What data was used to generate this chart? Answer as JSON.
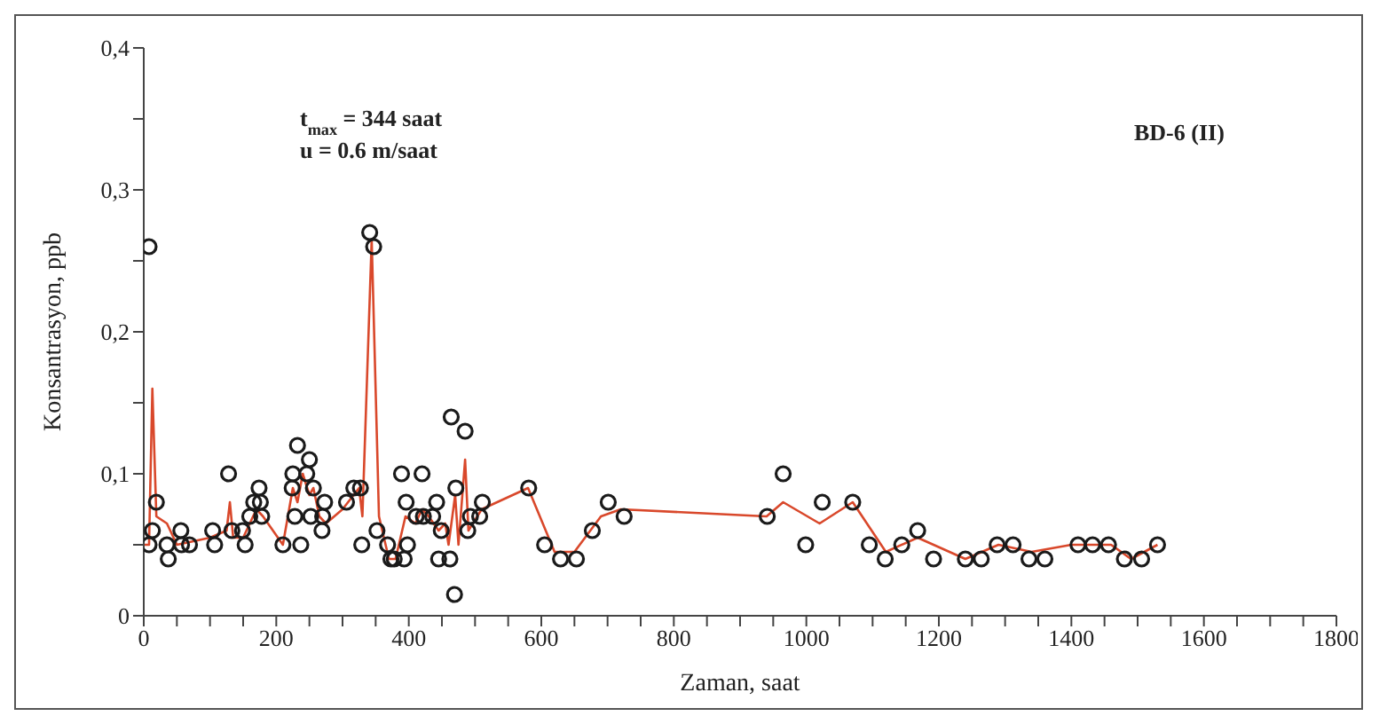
{
  "chart_data": {
    "type": "scatter",
    "xlabel": "Zaman, saat",
    "ylabel": "Konsantrasyon, ppb",
    "annotations": [
      "t$_{max}$ = 344 saat",
      "u = 0.6  m/saat",
      "BD-6 (II)"
    ],
    "xlim": [
      0,
      1800
    ],
    "xticks": [
      0,
      {
        "value": 50,
        "label": null
      },
      {
        "value": 100,
        "label": null
      },
      {
        "value": 150,
        "label": null
      },
      200,
      {
        "value": 250,
        "label": null
      },
      {
        "value": 300,
        "label": null
      },
      {
        "value": 350,
        "label": null
      },
      400,
      {
        "value": 450,
        "label": null
      },
      {
        "value": 500,
        "label": null
      },
      {
        "value": 550,
        "label": null
      },
      600,
      {
        "value": 650,
        "label": null
      },
      {
        "value": 700,
        "label": null
      },
      {
        "value": 750,
        "label": null
      },
      800,
      {
        "value": 850,
        "label": null
      },
      {
        "value": 900,
        "label": null
      },
      {
        "value": 950,
        "label": null
      },
      1000,
      {
        "value": 1050,
        "label": null
      },
      {
        "value": 1100,
        "label": null
      },
      {
        "value": 1150,
        "label": null
      },
      1200,
      {
        "value": 1250,
        "label": null
      },
      {
        "value": 1300,
        "label": null
      },
      {
        "value": 1350,
        "label": null
      },
      1400,
      {
        "value": 1450,
        "label": null
      },
      {
        "value": 1500,
        "label": null
      },
      {
        "value": 1550,
        "label": null
      },
      1600,
      {
        "value": 1650,
        "label": null
      },
      {
        "value": 1700,
        "label": null
      },
      {
        "value": 1750,
        "label": null
      },
      1800
    ],
    "ylim": [
      0,
      0.4
    ],
    "yticks": [
      0,
      {
        "value": 0.05,
        "label": null
      },
      {
        "value": 0.1,
        "label": "0,1"
      },
      {
        "value": 0.15,
        "label": null
      },
      {
        "value": 0.2,
        "label": "0,2"
      },
      {
        "value": 0.25,
        "label": null
      },
      {
        "value": 0.3,
        "label": "0,3"
      },
      {
        "value": 0.35,
        "label": null
      },
      {
        "value": 0.4,
        "label": "0,4"
      }
    ],
    "grid": false,
    "legend": false,
    "marker": "circle",
    "series": [
      {
        "color": "#1a1a1a",
        "x": [
          8,
          8,
          13,
          19,
          35,
          37,
          56,
          57,
          69,
          104,
          107,
          128,
          133,
          149,
          153,
          160,
          166,
          174,
          176,
          178,
          210,
          224,
          225,
          228,
          232,
          237,
          246,
          250,
          252,
          256,
          269,
          270,
          273,
          306,
          317,
          327,
          329,
          341,
          347,
          352,
          368,
          373,
          378,
          389,
          393,
          396,
          398,
          411,
          420,
          422,
          436,
          442,
          445,
          449,
          462,
          464,
          469,
          471,
          485,
          489,
          493,
          507,
          511,
          581,
          605,
          629,
          653,
          677,
          701,
          725,
          941,
          965,
          999,
          1024,
          1070,
          1095,
          1119,
          1144,
          1168,
          1192,
          1240,
          1264,
          1288,
          1312,
          1336,
          1360,
          1410,
          1432,
          1456,
          1480,
          1506,
          1530
        ],
        "values": [
          0.05,
          0.26,
          0.06,
          0.08,
          0.05,
          0.04,
          0.06,
          0.05,
          0.05,
          0.06,
          0.05,
          0.1,
          0.06,
          0.06,
          0.05,
          0.07,
          0.08,
          0.09,
          0.08,
          0.07,
          0.05,
          0.09,
          0.1,
          0.07,
          0.12,
          0.05,
          0.1,
          0.11,
          0.07,
          0.09,
          0.06,
          0.07,
          0.08,
          0.08,
          0.09,
          0.09,
          0.05,
          0.27,
          0.26,
          0.06,
          0.05,
          0.04,
          0.04,
          0.1,
          0.04,
          0.08,
          0.05,
          0.07,
          0.1,
          0.07,
          0.07,
          0.08,
          0.04,
          0.06,
          0.04,
          0.14,
          0.015,
          0.09,
          0.13,
          0.06,
          0.07,
          0.07,
          0.08,
          0.09,
          0.05,
          0.04,
          0.04,
          0.06,
          0.08,
          0.07,
          0.07,
          0.1,
          0.05,
          0.08,
          0.08,
          0.05,
          0.04,
          0.05,
          0.06,
          0.04,
          0.04,
          0.04,
          0.05,
          0.05,
          0.04,
          0.04,
          0.05,
          0.05,
          0.05,
          0.04,
          0.04,
          0.05
        ]
      },
      {
        "type": "line",
        "color": "#d9482b",
        "marker": "none",
        "line_style": "solid",
        "x": [
          0,
          8,
          13,
          19,
          35,
          50,
          100,
          125,
          130,
          135,
          150,
          170,
          180,
          210,
          225,
          232,
          240,
          250,
          256,
          265,
          275,
          300,
          325,
          330,
          344,
          355,
          370,
          380,
          395,
          410,
          420,
          430,
          445,
          455,
          460,
          470,
          475,
          485,
          490,
          510,
          580,
          620,
          650,
          690,
          720,
          940,
          965,
          1020,
          1070,
          1120,
          1168,
          1240,
          1290,
          1340,
          1400,
          1460,
          1490,
          1530
        ],
        "values": [
          0.05,
          0.05,
          0.16,
          0.07,
          0.065,
          0.05,
          0.055,
          0.06,
          0.08,
          0.055,
          0.055,
          0.075,
          0.07,
          0.05,
          0.09,
          0.08,
          0.1,
          0.085,
          0.09,
          0.07,
          0.065,
          0.075,
          0.09,
          0.07,
          0.265,
          0.07,
          0.04,
          0.04,
          0.07,
          0.065,
          0.075,
          0.07,
          0.06,
          0.065,
          0.05,
          0.085,
          0.05,
          0.11,
          0.06,
          0.075,
          0.09,
          0.045,
          0.045,
          0.07,
          0.075,
          0.07,
          0.08,
          0.065,
          0.08,
          0.045,
          0.055,
          0.04,
          0.05,
          0.045,
          0.05,
          0.05,
          0.04,
          0.05
        ]
      }
    ]
  }
}
